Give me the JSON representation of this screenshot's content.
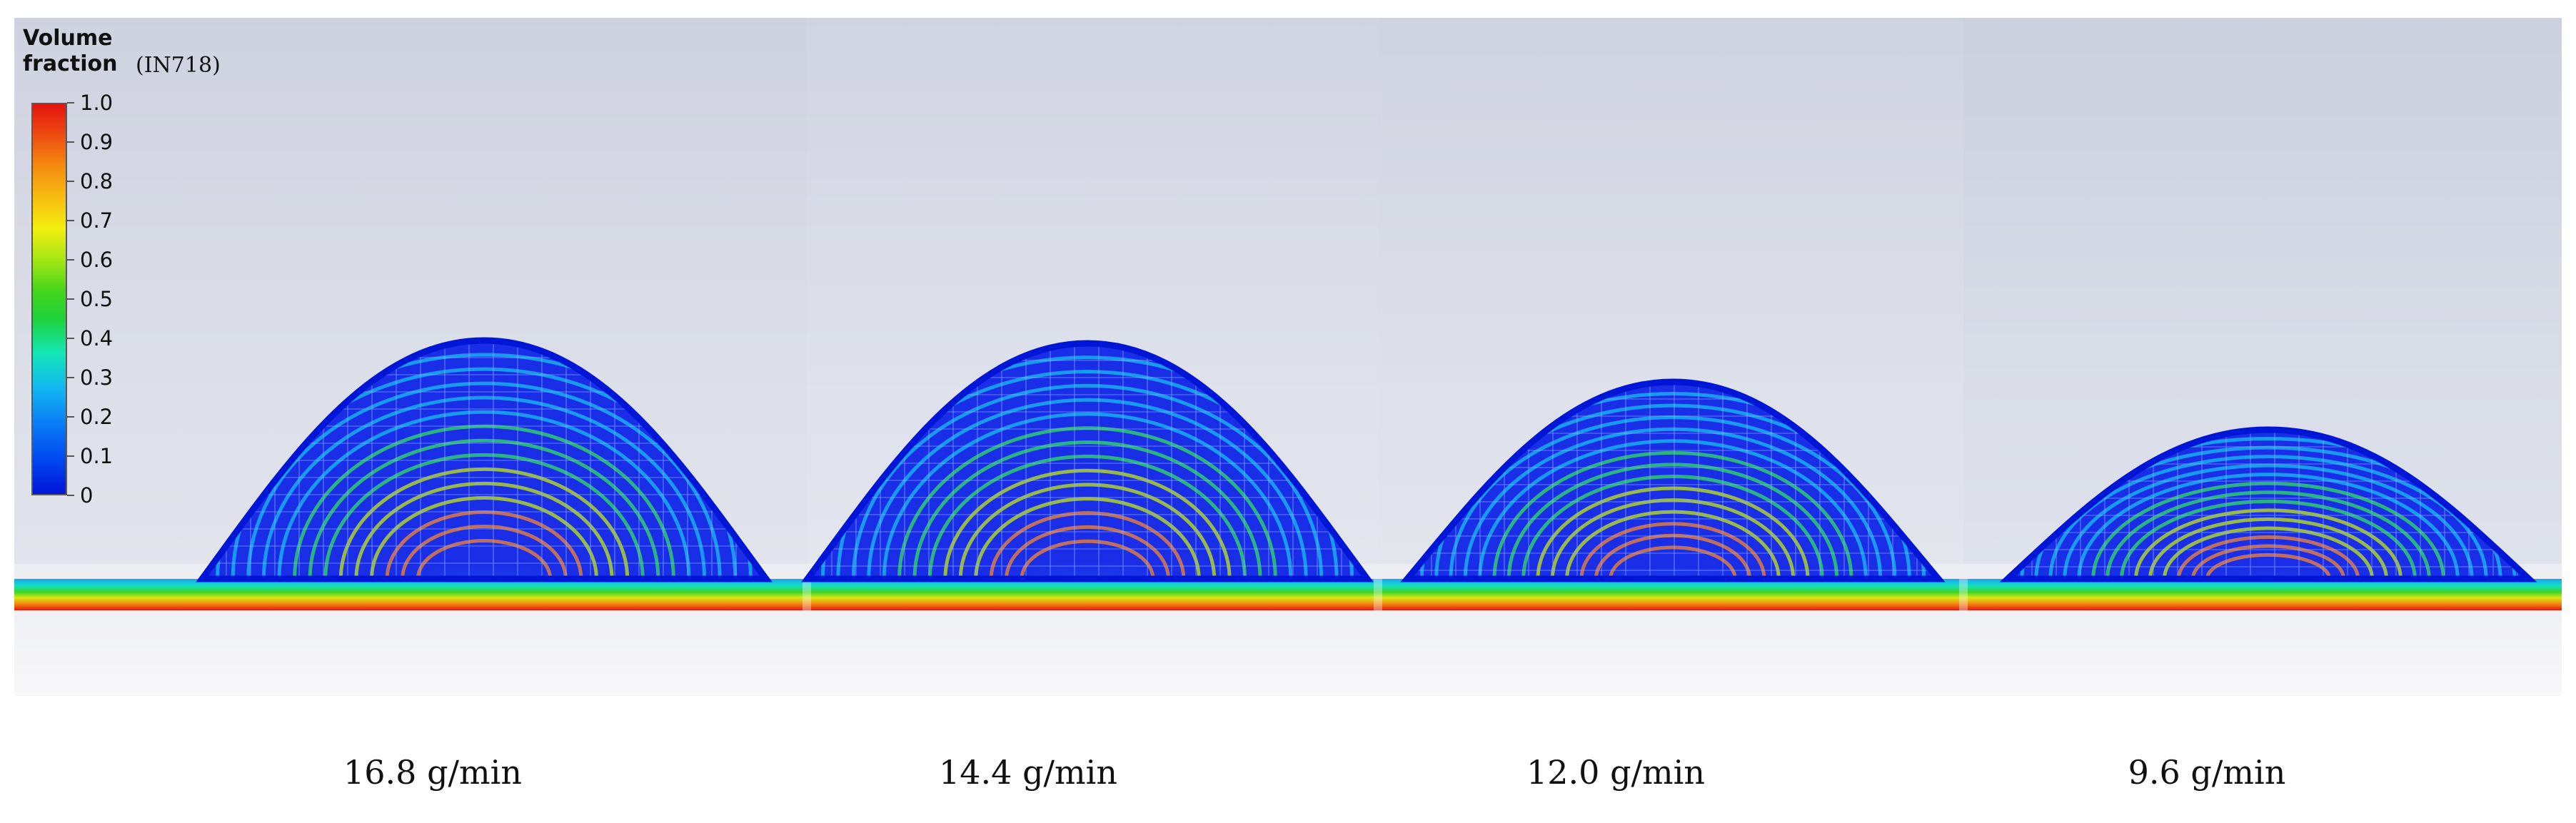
{
  "legend": {
    "title": "Volume fraction",
    "material": "(IN718)",
    "ticks": [
      "1.0",
      "0.9",
      "0.8",
      "0.7",
      "0.6",
      "0.5",
      "0.4",
      "0.3",
      "0.2",
      "0.1",
      "0"
    ]
  },
  "panels": [
    {
      "label": "16.8 g/min"
    },
    {
      "label": "14.4 g/min"
    },
    {
      "label": "12.0 g/min"
    },
    {
      "label": "9.6 g/min"
    }
  ]
}
